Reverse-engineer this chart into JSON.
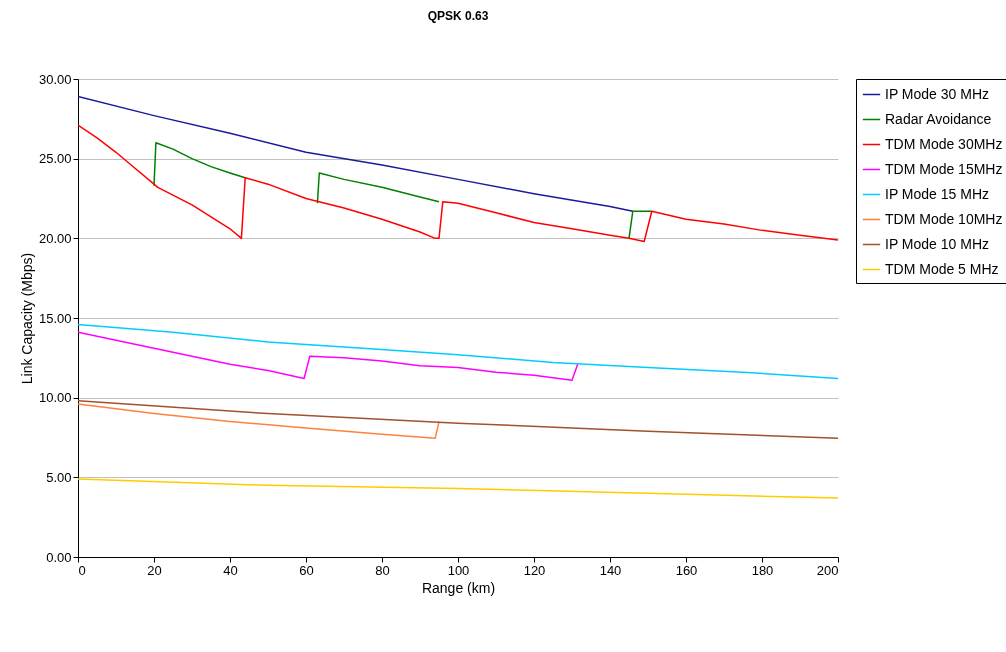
{
  "chart_data": {
    "type": "line",
    "title": "QPSK 0.63",
    "xlabel": "Range (km)",
    "ylabel": "Link Capacity (Mbps)",
    "xlim": [
      0,
      200
    ],
    "xticks": [
      0,
      20,
      40,
      60,
      80,
      100,
      120,
      140,
      160,
      180,
      200
    ],
    "ylim": [
      0,
      30
    ],
    "yticks": [
      {
        "value": 0,
        "label": "0.00"
      },
      {
        "value": 5,
        "label": "5.00"
      },
      {
        "value": 10,
        "label": "10.00"
      },
      {
        "value": 15,
        "label": "15.00"
      },
      {
        "value": 20,
        "label": "20.00"
      },
      {
        "value": 25,
        "label": "25.00"
      },
      {
        "value": 30,
        "label": "30.00"
      }
    ],
    "grid": "y",
    "legend": "top right",
    "line_style": "solid",
    "series": [
      {
        "name": "IP Mode 30 MHz",
        "color": "#1a1a9c",
        "x": [
          0,
          20,
          40,
          60,
          80,
          100,
          120,
          140,
          146
        ],
        "values": [
          28.9,
          27.7,
          26.6,
          25.4,
          24.6,
          23.7,
          22.8,
          22.0,
          21.7
        ]
      },
      {
        "name": "Radar Avoidance",
        "color": "#008000",
        "x": [
          20,
          20.5,
          25,
          30,
          35,
          40,
          44,
          50,
          63,
          63.5,
          70,
          80,
          90,
          95,
          120,
          145,
          146,
          151
        ],
        "values": [
          23.3,
          26.0,
          25.6,
          25.0,
          24.5,
          24.1,
          23.8,
          null,
          22.2,
          24.1,
          23.7,
          23.2,
          22.6,
          22.3,
          null,
          20.0,
          21.7,
          21.7
        ]
      },
      {
        "name": "TDM Mode 30MHz",
        "color": "#ff0000",
        "x": [
          0,
          5,
          10,
          15,
          20,
          21,
          30,
          40,
          43,
          44,
          50,
          60,
          70,
          80,
          90,
          94,
          95,
          96,
          100,
          110,
          120,
          130,
          140,
          145,
          149,
          151,
          160,
          170,
          180,
          190,
          200
        ],
        "values": [
          27.1,
          26.3,
          25.4,
          24.4,
          23.4,
          23.2,
          22.1,
          20.6,
          20.0,
          23.8,
          23.4,
          22.5,
          21.9,
          21.2,
          20.4,
          20.0,
          20.0,
          22.3,
          22.2,
          21.6,
          21.0,
          20.6,
          20.2,
          20.0,
          19.8,
          21.7,
          21.2,
          20.9,
          20.5,
          20.2,
          19.9
        ]
      },
      {
        "name": "TDM Mode 15MHz",
        "color": "#ff00ff",
        "x": [
          0,
          10,
          20,
          30,
          40,
          50,
          59.5,
          61,
          70,
          80,
          90,
          100,
          110,
          120,
          130,
          131.5
        ],
        "values": [
          14.1,
          13.6,
          13.1,
          12.6,
          12.1,
          11.7,
          11.2,
          12.6,
          12.5,
          12.3,
          12.0,
          11.9,
          11.6,
          11.4,
          11.1,
          12.1
        ]
      },
      {
        "name": "IP Mode 15 MHz",
        "color": "#00ccff",
        "x": [
          0,
          25,
          50,
          75,
          100,
          125,
          150,
          175,
          200
        ],
        "values": [
          14.6,
          14.1,
          13.5,
          13.1,
          12.7,
          12.2,
          11.9,
          11.6,
          11.2
        ]
      },
      {
        "name": "TDM Mode 10MHz",
        "color": "#ff8040",
        "x": [
          0,
          20,
          40,
          60,
          80,
          94,
          95
        ],
        "values": [
          9.6,
          9.0,
          8.5,
          8.1,
          7.7,
          7.45,
          8.5
        ]
      },
      {
        "name": "IP Mode 10 MHz",
        "color": "#a0522d",
        "x": [
          0,
          50,
          100,
          150,
          200
        ],
        "values": [
          9.8,
          9.0,
          8.4,
          7.9,
          7.45
        ]
      },
      {
        "name": "TDM Mode 5 MHz",
        "color": "#ffcc00",
        "x": [
          0,
          50,
          100,
          150,
          200
        ],
        "values": [
          4.9,
          4.5,
          4.3,
          4.0,
          3.7
        ]
      }
    ]
  }
}
